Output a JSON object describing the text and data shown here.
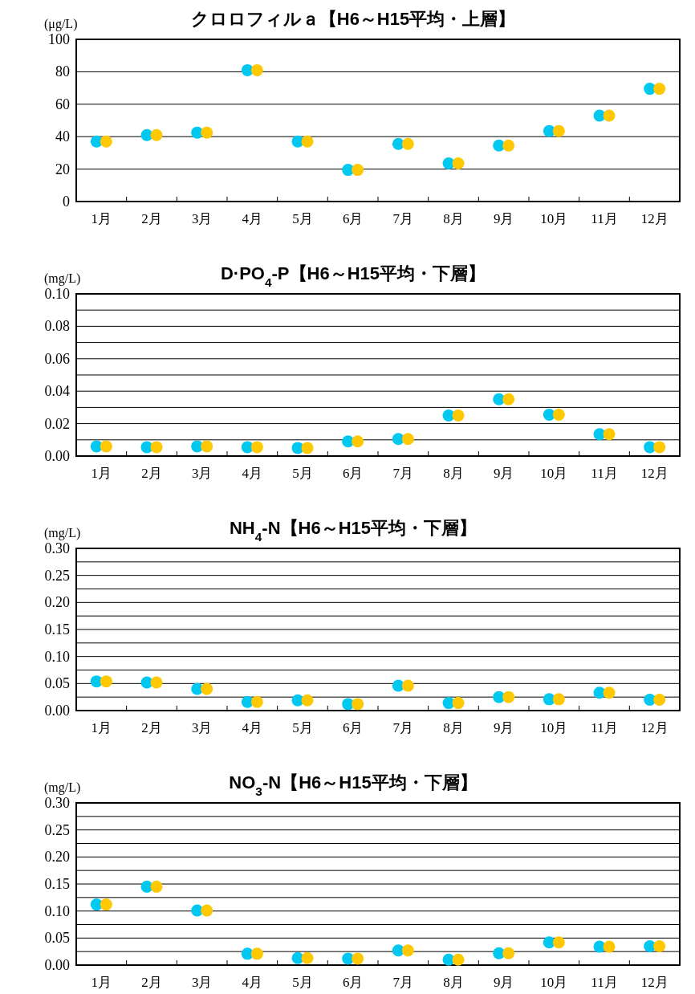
{
  "chart_data": [
    {
      "type": "scatter",
      "title": "クロロフィルａ【H6～H15平均・上層】",
      "ylabel": "(μg/L)",
      "categories": [
        "1月",
        "2月",
        "3月",
        "4月",
        "5月",
        "6月",
        "7月",
        "8月",
        "9月",
        "10月",
        "11月",
        "12月"
      ],
      "ylim": [
        0,
        100
      ],
      "yticks": [
        0,
        20,
        40,
        60,
        80,
        100
      ],
      "grid": "y",
      "marker": "circle",
      "series": [
        {
          "color": "#00c8f0",
          "values": [
            37,
            41,
            42.5,
            81,
            37,
            19.5,
            35.5,
            23.5,
            34.5,
            43.5,
            53,
            69.5
          ]
        },
        {
          "color": "#ffc800",
          "values": [
            37,
            41,
            42.5,
            81,
            37,
            19.5,
            35.5,
            23.5,
            34.5,
            43.5,
            53,
            69.5
          ]
        }
      ]
    },
    {
      "type": "scatter",
      "title": "D·PO$_{4}$-P【H6～H15平均・下層】",
      "ylabel": "(mg/L)",
      "categories": [
        "1月",
        "2月",
        "3月",
        "4月",
        "5月",
        "6月",
        "7月",
        "8月",
        "9月",
        "10月",
        "11月",
        "12月"
      ],
      "ylim": [
        0,
        0.1
      ],
      "yticks": [
        {
          "value": 0,
          "label": "0.00"
        },
        {
          "value": 0.01,
          "label": null
        },
        {
          "value": 0.02,
          "label": "0.02"
        },
        {
          "value": 0.03,
          "label": null
        },
        {
          "value": 0.04,
          "label": "0.04"
        },
        {
          "value": 0.05,
          "label": null
        },
        {
          "value": 0.06,
          "label": "0.06"
        },
        {
          "value": 0.07,
          "label": null
        },
        {
          "value": 0.08,
          "label": "0.08"
        },
        {
          "value": 0.09,
          "label": null
        },
        {
          "value": 0.1,
          "label": "0.10"
        }
      ],
      "grid": "y",
      "marker": "circle",
      "series": [
        {
          "color": "#00c8f0",
          "values": [
            0.006,
            0.0055,
            0.006,
            0.0055,
            0.005,
            0.009,
            0.0105,
            0.025,
            0.035,
            0.0255,
            0.0135,
            0.0055
          ]
        },
        {
          "color": "#ffc800",
          "values": [
            0.006,
            0.0055,
            0.006,
            0.0055,
            0.005,
            0.009,
            0.0105,
            0.025,
            0.035,
            0.0255,
            0.0135,
            0.0055
          ]
        }
      ]
    },
    {
      "type": "scatter",
      "title": "NH$_{4}$-N【H6～H15平均・下層】",
      "ylabel": "(mg/L)",
      "categories": [
        "1月",
        "2月",
        "3月",
        "4月",
        "5月",
        "6月",
        "7月",
        "8月",
        "9月",
        "10月",
        "11月",
        "12月"
      ],
      "ylim": [
        0,
        0.3
      ],
      "yticks": [
        {
          "value": 0,
          "label": "0.00"
        },
        {
          "value": 0.025,
          "label": null
        },
        {
          "value": 0.05,
          "label": "0.05"
        },
        {
          "value": 0.075,
          "label": null
        },
        {
          "value": 0.1,
          "label": "0.10"
        },
        {
          "value": 0.125,
          "label": null
        },
        {
          "value": 0.15,
          "label": "0.15"
        },
        {
          "value": 0.175,
          "label": null
        },
        {
          "value": 0.2,
          "label": "0.20"
        },
        {
          "value": 0.225,
          "label": null
        },
        {
          "value": 0.25,
          "label": "0.25"
        },
        {
          "value": 0.275,
          "label": null
        },
        {
          "value": 0.3,
          "label": "0.30"
        }
      ],
      "grid": "y",
      "marker": "circle",
      "series": [
        {
          "color": "#00c8f0",
          "values": [
            0.054,
            0.052,
            0.04,
            0.016,
            0.019,
            0.012,
            0.046,
            0.014,
            0.025,
            0.021,
            0.033,
            0.02
          ]
        },
        {
          "color": "#ffc800",
          "values": [
            0.054,
            0.052,
            0.04,
            0.016,
            0.019,
            0.012,
            0.046,
            0.014,
            0.025,
            0.021,
            0.033,
            0.02
          ]
        }
      ]
    },
    {
      "type": "scatter",
      "title": "NO$_{3}$-N【H6～H15平均・下層】",
      "ylabel": "(mg/L)",
      "categories": [
        "1月",
        "2月",
        "3月",
        "4月",
        "5月",
        "6月",
        "7月",
        "8月",
        "9月",
        "10月",
        "11月",
        "12月"
      ],
      "ylim": [
        0,
        0.3
      ],
      "yticks": [
        {
          "value": 0,
          "label": "0.00"
        },
        {
          "value": 0.025,
          "label": null
        },
        {
          "value": 0.05,
          "label": "0.05"
        },
        {
          "value": 0.075,
          "label": null
        },
        {
          "value": 0.1,
          "label": "0.10"
        },
        {
          "value": 0.125,
          "label": null
        },
        {
          "value": 0.15,
          "label": "0.15"
        },
        {
          "value": 0.175,
          "label": null
        },
        {
          "value": 0.2,
          "label": "0.20"
        },
        {
          "value": 0.225,
          "label": null
        },
        {
          "value": 0.25,
          "label": "0.25"
        },
        {
          "value": 0.275,
          "label": null
        },
        {
          "value": 0.3,
          "label": "0.30"
        }
      ],
      "grid": "y",
      "marker": "circle",
      "series": [
        {
          "color": "#00c8f0",
          "values": [
            0.112,
            0.145,
            0.101,
            0.021,
            0.013,
            0.012,
            0.027,
            0.01,
            0.022,
            0.042,
            0.034,
            0.035
          ]
        },
        {
          "color": "#ffc800",
          "values": [
            0.112,
            0.145,
            0.101,
            0.021,
            0.013,
            0.012,
            0.027,
            0.01,
            0.022,
            0.042,
            0.034,
            0.035
          ]
        }
      ]
    }
  ]
}
